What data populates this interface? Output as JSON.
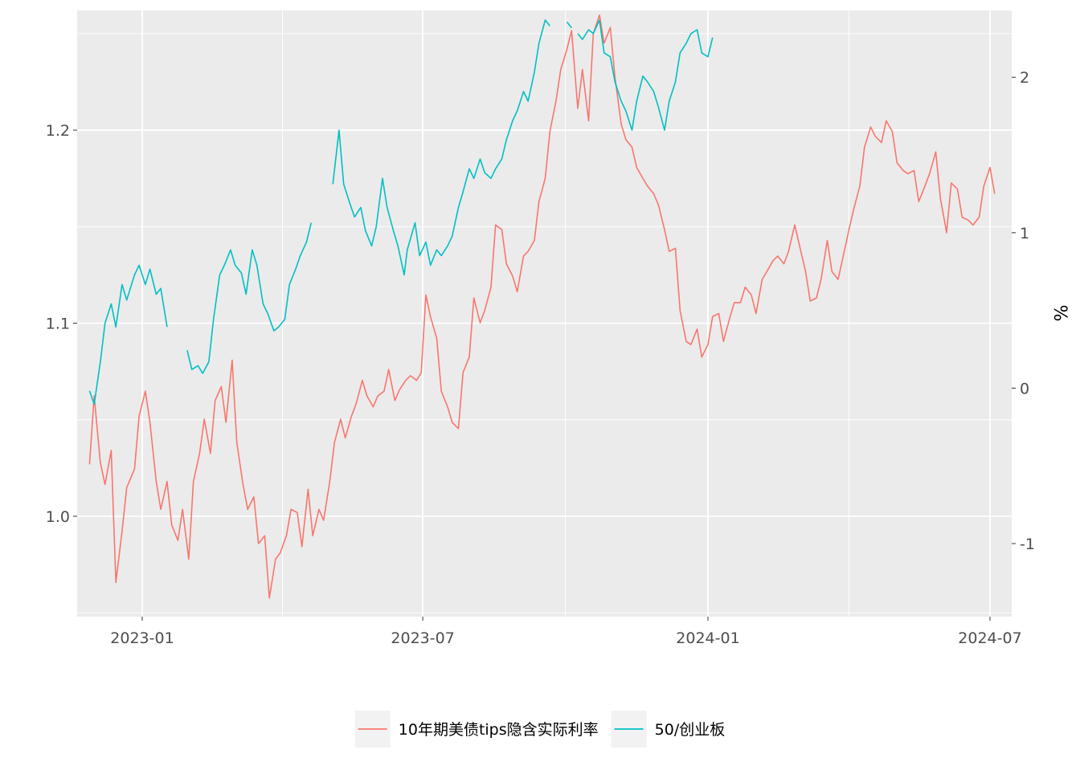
{
  "chart_data": {
    "type": "line",
    "title": "",
    "xlabel": "",
    "ylabel": "",
    "y2label": "%",
    "grid": true,
    "legend_position": "bottom",
    "x_range": [
      "2022-11-20",
      "2024-07-15"
    ],
    "ylim": [
      0.948,
      1.262
    ],
    "y2lim": [
      -1.47,
      2.43
    ],
    "x_ticks": [
      "2023-01",
      "2023-07",
      "2024-01",
      "2024-07"
    ],
    "y_ticks": [
      "1.0",
      "1.1",
      "1.2"
    ],
    "y2_ticks": [
      "-1",
      "0",
      "1",
      "2"
    ],
    "series": [
      {
        "name": "10年期美债tips隐含实际利率",
        "axis": "right",
        "color": "#F8766D",
        "points": [
          [
            "2022-11-28",
            -0.49
          ],
          [
            "2022-12-01",
            -0.05
          ],
          [
            "2022-12-05",
            -0.48
          ],
          [
            "2022-12-08",
            -0.62
          ],
          [
            "2022-12-12",
            -0.4
          ],
          [
            "2022-12-15",
            -1.25
          ],
          [
            "2022-12-19",
            -0.92
          ],
          [
            "2022-12-22",
            -0.64
          ],
          [
            "2022-12-27",
            -0.52
          ],
          [
            "2022-12-30",
            -0.18
          ],
          [
            "2023-01-03",
            -0.02
          ],
          [
            "2023-01-06",
            -0.22
          ],
          [
            "2023-01-10",
            -0.6
          ],
          [
            "2023-01-13",
            -0.78
          ],
          [
            "2023-01-17",
            -0.6
          ],
          [
            "2023-01-20",
            -0.88
          ],
          [
            "2023-01-24",
            -0.98
          ],
          [
            "2023-01-27",
            -0.78
          ],
          [
            "2023-01-31",
            -1.1
          ],
          [
            "2023-02-03",
            -0.6
          ],
          [
            "2023-02-07",
            -0.42
          ],
          [
            "2023-02-10",
            -0.2
          ],
          [
            "2023-02-14",
            -0.42
          ],
          [
            "2023-02-17",
            -0.08
          ],
          [
            "2023-02-21",
            0.01
          ],
          [
            "2023-02-24",
            -0.22
          ],
          [
            "2023-02-28",
            0.18
          ],
          [
            "2023-03-03",
            -0.35
          ],
          [
            "2023-03-07",
            -0.62
          ],
          [
            "2023-03-10",
            -0.78
          ],
          [
            "2023-03-14",
            -0.7
          ],
          [
            "2023-03-17",
            -1.0
          ],
          [
            "2023-03-21",
            -0.95
          ],
          [
            "2023-03-24",
            -1.35
          ],
          [
            "2023-03-28",
            -1.1
          ],
          [
            "2023-03-31",
            -1.06
          ],
          [
            "2023-04-04",
            -0.95
          ],
          [
            "2023-04-07",
            -0.78
          ],
          [
            "2023-04-11",
            -0.8
          ],
          [
            "2023-04-14",
            -1.02
          ],
          [
            "2023-04-18",
            -0.65
          ],
          [
            "2023-04-21",
            -0.95
          ],
          [
            "2023-04-25",
            -0.78
          ],
          [
            "2023-04-28",
            -0.85
          ],
          [
            "2023-05-02",
            -0.6
          ],
          [
            "2023-05-05",
            -0.35
          ],
          [
            "2023-05-09",
            -0.2
          ],
          [
            "2023-05-12",
            -0.32
          ],
          [
            "2023-05-16",
            -0.18
          ],
          [
            "2023-05-19",
            -0.1
          ],
          [
            "2023-05-23",
            0.05
          ],
          [
            "2023-05-26",
            -0.05
          ],
          [
            "2023-05-30",
            -0.12
          ],
          [
            "2023-06-02",
            -0.05
          ],
          [
            "2023-06-06",
            -0.02
          ],
          [
            "2023-06-09",
            0.12
          ],
          [
            "2023-06-13",
            -0.08
          ],
          [
            "2023-06-16",
            -0.01
          ],
          [
            "2023-06-20",
            0.05
          ],
          [
            "2023-06-23",
            0.08
          ],
          [
            "2023-06-27",
            0.05
          ],
          [
            "2023-06-30",
            0.1
          ],
          [
            "2023-07-03",
            0.6
          ],
          [
            "2023-07-06",
            0.46
          ],
          [
            "2023-07-10",
            0.32
          ],
          [
            "2023-07-13",
            -0.02
          ],
          [
            "2023-07-17",
            -0.12
          ],
          [
            "2023-07-20",
            -0.22
          ],
          [
            "2023-07-24",
            -0.26
          ],
          [
            "2023-07-27",
            0.1
          ],
          [
            "2023-07-31",
            0.2
          ],
          [
            "2023-08-03",
            0.58
          ],
          [
            "2023-08-07",
            0.42
          ],
          [
            "2023-08-10",
            0.5
          ],
          [
            "2023-08-14",
            0.65
          ],
          [
            "2023-08-17",
            1.05
          ],
          [
            "2023-08-21",
            1.02
          ],
          [
            "2023-08-24",
            0.8
          ],
          [
            "2023-08-28",
            0.72
          ],
          [
            "2023-08-31",
            0.62
          ],
          [
            "2023-09-04",
            0.85
          ],
          [
            "2023-09-07",
            0.88
          ],
          [
            "2023-09-11",
            0.95
          ],
          [
            "2023-09-14",
            1.2
          ],
          [
            "2023-09-18",
            1.35
          ],
          [
            "2023-09-21",
            1.65
          ],
          [
            "2023-09-25",
            1.85
          ],
          [
            "2023-09-28",
            2.05
          ],
          [
            "2023-10-02",
            2.18
          ],
          [
            "2023-10-05",
            2.3
          ],
          [
            "2023-10-09",
            1.8
          ],
          [
            "2023-10-12",
            2.05
          ],
          [
            "2023-10-16",
            1.72
          ],
          [
            "2023-10-19",
            2.28
          ],
          [
            "2023-10-23",
            2.4
          ],
          [
            "2023-10-26",
            2.22
          ],
          [
            "2023-10-30",
            2.32
          ],
          [
            "2023-11-02",
            2.0
          ],
          [
            "2023-11-06",
            1.7
          ],
          [
            "2023-11-09",
            1.6
          ],
          [
            "2023-11-13",
            1.55
          ],
          [
            "2023-11-16",
            1.42
          ],
          [
            "2023-11-20",
            1.35
          ],
          [
            "2023-11-23",
            1.3
          ],
          [
            "2023-11-27",
            1.25
          ],
          [
            "2023-11-30",
            1.18
          ],
          [
            "2023-12-04",
            1.02
          ],
          [
            "2023-12-07",
            0.88
          ],
          [
            "2023-12-11",
            0.9
          ],
          [
            "2023-12-14",
            0.5
          ],
          [
            "2023-12-18",
            0.3
          ],
          [
            "2023-12-21",
            0.28
          ],
          [
            "2023-12-25",
            0.38
          ],
          [
            "2023-12-28",
            0.2
          ],
          [
            "2024-01-01",
            0.28
          ],
          [
            "2024-01-04",
            0.46
          ],
          [
            "2024-01-08",
            0.48
          ],
          [
            "2024-01-11",
            0.3
          ],
          [
            "2024-01-15",
            0.45
          ],
          [
            "2024-01-18",
            0.55
          ],
          [
            "2024-01-22",
            0.55
          ],
          [
            "2024-01-25",
            0.65
          ],
          [
            "2024-01-29",
            0.6
          ],
          [
            "2024-02-01",
            0.48
          ],
          [
            "2024-02-05",
            0.7
          ],
          [
            "2024-02-08",
            0.75
          ],
          [
            "2024-02-12",
            0.82
          ],
          [
            "2024-02-15",
            0.85
          ],
          [
            "2024-02-19",
            0.8
          ],
          [
            "2024-02-22",
            0.88
          ],
          [
            "2024-02-26",
            1.05
          ],
          [
            "2024-02-29",
            0.92
          ],
          [
            "2024-03-04",
            0.75
          ],
          [
            "2024-03-07",
            0.56
          ],
          [
            "2024-03-11",
            0.58
          ],
          [
            "2024-03-14",
            0.7
          ],
          [
            "2024-03-18",
            0.95
          ],
          [
            "2024-03-21",
            0.75
          ],
          [
            "2024-03-25",
            0.7
          ],
          [
            "2024-04-01",
            1.02
          ],
          [
            "2024-04-04",
            1.15
          ],
          [
            "2024-04-08",
            1.3
          ],
          [
            "2024-04-11",
            1.55
          ],
          [
            "2024-04-15",
            1.68
          ],
          [
            "2024-04-18",
            1.62
          ],
          [
            "2024-04-22",
            1.58
          ],
          [
            "2024-04-25",
            1.72
          ],
          [
            "2024-04-29",
            1.65
          ],
          [
            "2024-05-02",
            1.45
          ],
          [
            "2024-05-06",
            1.4
          ],
          [
            "2024-05-09",
            1.38
          ],
          [
            "2024-05-13",
            1.4
          ],
          [
            "2024-05-16",
            1.2
          ],
          [
            "2024-05-20",
            1.3
          ],
          [
            "2024-05-23",
            1.38
          ],
          [
            "2024-05-27",
            1.52
          ],
          [
            "2024-05-30",
            1.22
          ],
          [
            "2024-06-03",
            1.0
          ],
          [
            "2024-06-06",
            1.32
          ],
          [
            "2024-06-10",
            1.28
          ],
          [
            "2024-06-13",
            1.1
          ],
          [
            "2024-06-17",
            1.08
          ],
          [
            "2024-06-20",
            1.05
          ],
          [
            "2024-06-24",
            1.1
          ],
          [
            "2024-06-27",
            1.3
          ],
          [
            "2024-07-01",
            1.42
          ],
          [
            "2024-07-04",
            1.25
          ]
        ]
      },
      {
        "name": "50/创业板",
        "axis": "left",
        "color": "#00BFC4",
        "points": [
          [
            "2022-11-28",
            1.065
          ],
          [
            "2022-12-01",
            1.058
          ],
          [
            "2022-12-05",
            1.08
          ],
          [
            "2022-12-08",
            1.1
          ],
          [
            "2022-12-12",
            1.11
          ],
          [
            "2022-12-15",
            1.098
          ],
          [
            "2022-12-19",
            1.12
          ],
          [
            "2022-12-22",
            1.112
          ],
          [
            "2022-12-27",
            1.125
          ],
          [
            "2022-12-30",
            1.13
          ],
          [
            "2023-01-03",
            1.12
          ],
          [
            "2023-01-06",
            1.128
          ],
          [
            "2023-01-10",
            1.115
          ],
          [
            "2023-01-13",
            1.118
          ],
          [
            "2023-01-17",
            1.098
          ],
          null,
          [
            "2023-01-30",
            1.086
          ],
          [
            "2023-02-02",
            1.076
          ],
          [
            "2023-02-06",
            1.078
          ],
          [
            "2023-02-09",
            1.074
          ],
          [
            "2023-02-13",
            1.08
          ],
          [
            "2023-02-16",
            1.102
          ],
          [
            "2023-02-20",
            1.125
          ],
          [
            "2023-02-23",
            1.13
          ],
          [
            "2023-02-27",
            1.138
          ],
          [
            "2023-03-02",
            1.13
          ],
          [
            "2023-03-06",
            1.126
          ],
          [
            "2023-03-09",
            1.115
          ],
          [
            "2023-03-13",
            1.138
          ],
          [
            "2023-03-16",
            1.13
          ],
          [
            "2023-03-20",
            1.11
          ],
          [
            "2023-03-23",
            1.105
          ],
          [
            "2023-03-27",
            1.096
          ],
          [
            "2023-03-30",
            1.098
          ],
          [
            "2023-04-03",
            1.102
          ],
          [
            "2023-04-06",
            1.12
          ],
          [
            "2023-04-10",
            1.128
          ],
          [
            "2023-04-13",
            1.135
          ],
          [
            "2023-04-17",
            1.142
          ],
          [
            "2023-04-20",
            1.152
          ],
          null,
          [
            "2023-05-04",
            1.172
          ],
          [
            "2023-05-08",
            1.2
          ],
          [
            "2023-05-11",
            1.172
          ],
          [
            "2023-05-15",
            1.162
          ],
          [
            "2023-05-18",
            1.155
          ],
          [
            "2023-05-22",
            1.16
          ],
          [
            "2023-05-25",
            1.148
          ],
          [
            "2023-05-29",
            1.14
          ],
          [
            "2023-06-01",
            1.15
          ],
          [
            "2023-06-05",
            1.175
          ],
          [
            "2023-06-08",
            1.16
          ],
          [
            "2023-06-12",
            1.148
          ],
          [
            "2023-06-15",
            1.14
          ],
          [
            "2023-06-19",
            1.125
          ],
          [
            "2023-06-21",
            1.138
          ],
          [
            "2023-06-26",
            1.152
          ],
          [
            "2023-06-29",
            1.135
          ],
          [
            "2023-07-03",
            1.142
          ],
          [
            "2023-07-06",
            1.13
          ],
          [
            "2023-07-10",
            1.138
          ],
          [
            "2023-07-13",
            1.135
          ],
          [
            "2023-07-17",
            1.14
          ],
          [
            "2023-07-20",
            1.145
          ],
          [
            "2023-07-24",
            1.16
          ],
          [
            "2023-07-27",
            1.168
          ],
          [
            "2023-07-31",
            1.18
          ],
          [
            "2023-08-03",
            1.175
          ],
          [
            "2023-08-07",
            1.185
          ],
          [
            "2023-08-10",
            1.178
          ],
          [
            "2023-08-14",
            1.175
          ],
          [
            "2023-08-17",
            1.18
          ],
          [
            "2023-08-21",
            1.185
          ],
          [
            "2023-08-24",
            1.195
          ],
          [
            "2023-08-28",
            1.205
          ],
          [
            "2023-08-31",
            1.21
          ],
          [
            "2023-09-04",
            1.22
          ],
          [
            "2023-09-07",
            1.215
          ],
          [
            "2023-09-11",
            1.23
          ],
          [
            "2023-09-14",
            1.245
          ],
          [
            "2023-09-18",
            1.257
          ],
          [
            "2023-09-21",
            1.254
          ],
          null,
          [
            "2023-10-02",
            1.256
          ],
          [
            "2023-10-05",
            1.253
          ],
          null,
          [
            "2023-10-09",
            1.25
          ],
          [
            "2023-10-12",
            1.247
          ],
          [
            "2023-10-16",
            1.252
          ],
          [
            "2023-10-19",
            1.25
          ],
          [
            "2023-10-23",
            1.257
          ],
          [
            "2023-10-26",
            1.24
          ],
          [
            "2023-10-30",
            1.238
          ],
          [
            "2023-11-02",
            1.225
          ],
          [
            "2023-11-06",
            1.215
          ],
          [
            "2023-11-09",
            1.21
          ],
          [
            "2023-11-13",
            1.2
          ],
          [
            "2023-11-16",
            1.215
          ],
          [
            "2023-11-20",
            1.228
          ],
          [
            "2023-11-23",
            1.225
          ],
          [
            "2023-11-27",
            1.22
          ],
          [
            "2023-11-30",
            1.212
          ],
          [
            "2023-12-04",
            1.2
          ],
          [
            "2023-12-07",
            1.215
          ],
          [
            "2023-12-11",
            1.225
          ],
          [
            "2023-12-14",
            1.24
          ],
          [
            "2023-12-18",
            1.245
          ],
          [
            "2023-12-21",
            1.25
          ],
          [
            "2023-12-25",
            1.252
          ],
          [
            "2023-12-28",
            1.24
          ],
          [
            "2024-01-01",
            1.238
          ],
          [
            "2024-01-04",
            1.248
          ]
        ]
      }
    ]
  },
  "legend": {
    "items": [
      {
        "label": "10年期美债tips隐含实际利率",
        "color": "#F8766D"
      },
      {
        "label": "50/创业板",
        "color": "#00BFC4"
      }
    ]
  },
  "colors": {
    "panel": "#EBEBEB",
    "grid_major": "#FFFFFF",
    "text": "#4D4D4D"
  }
}
